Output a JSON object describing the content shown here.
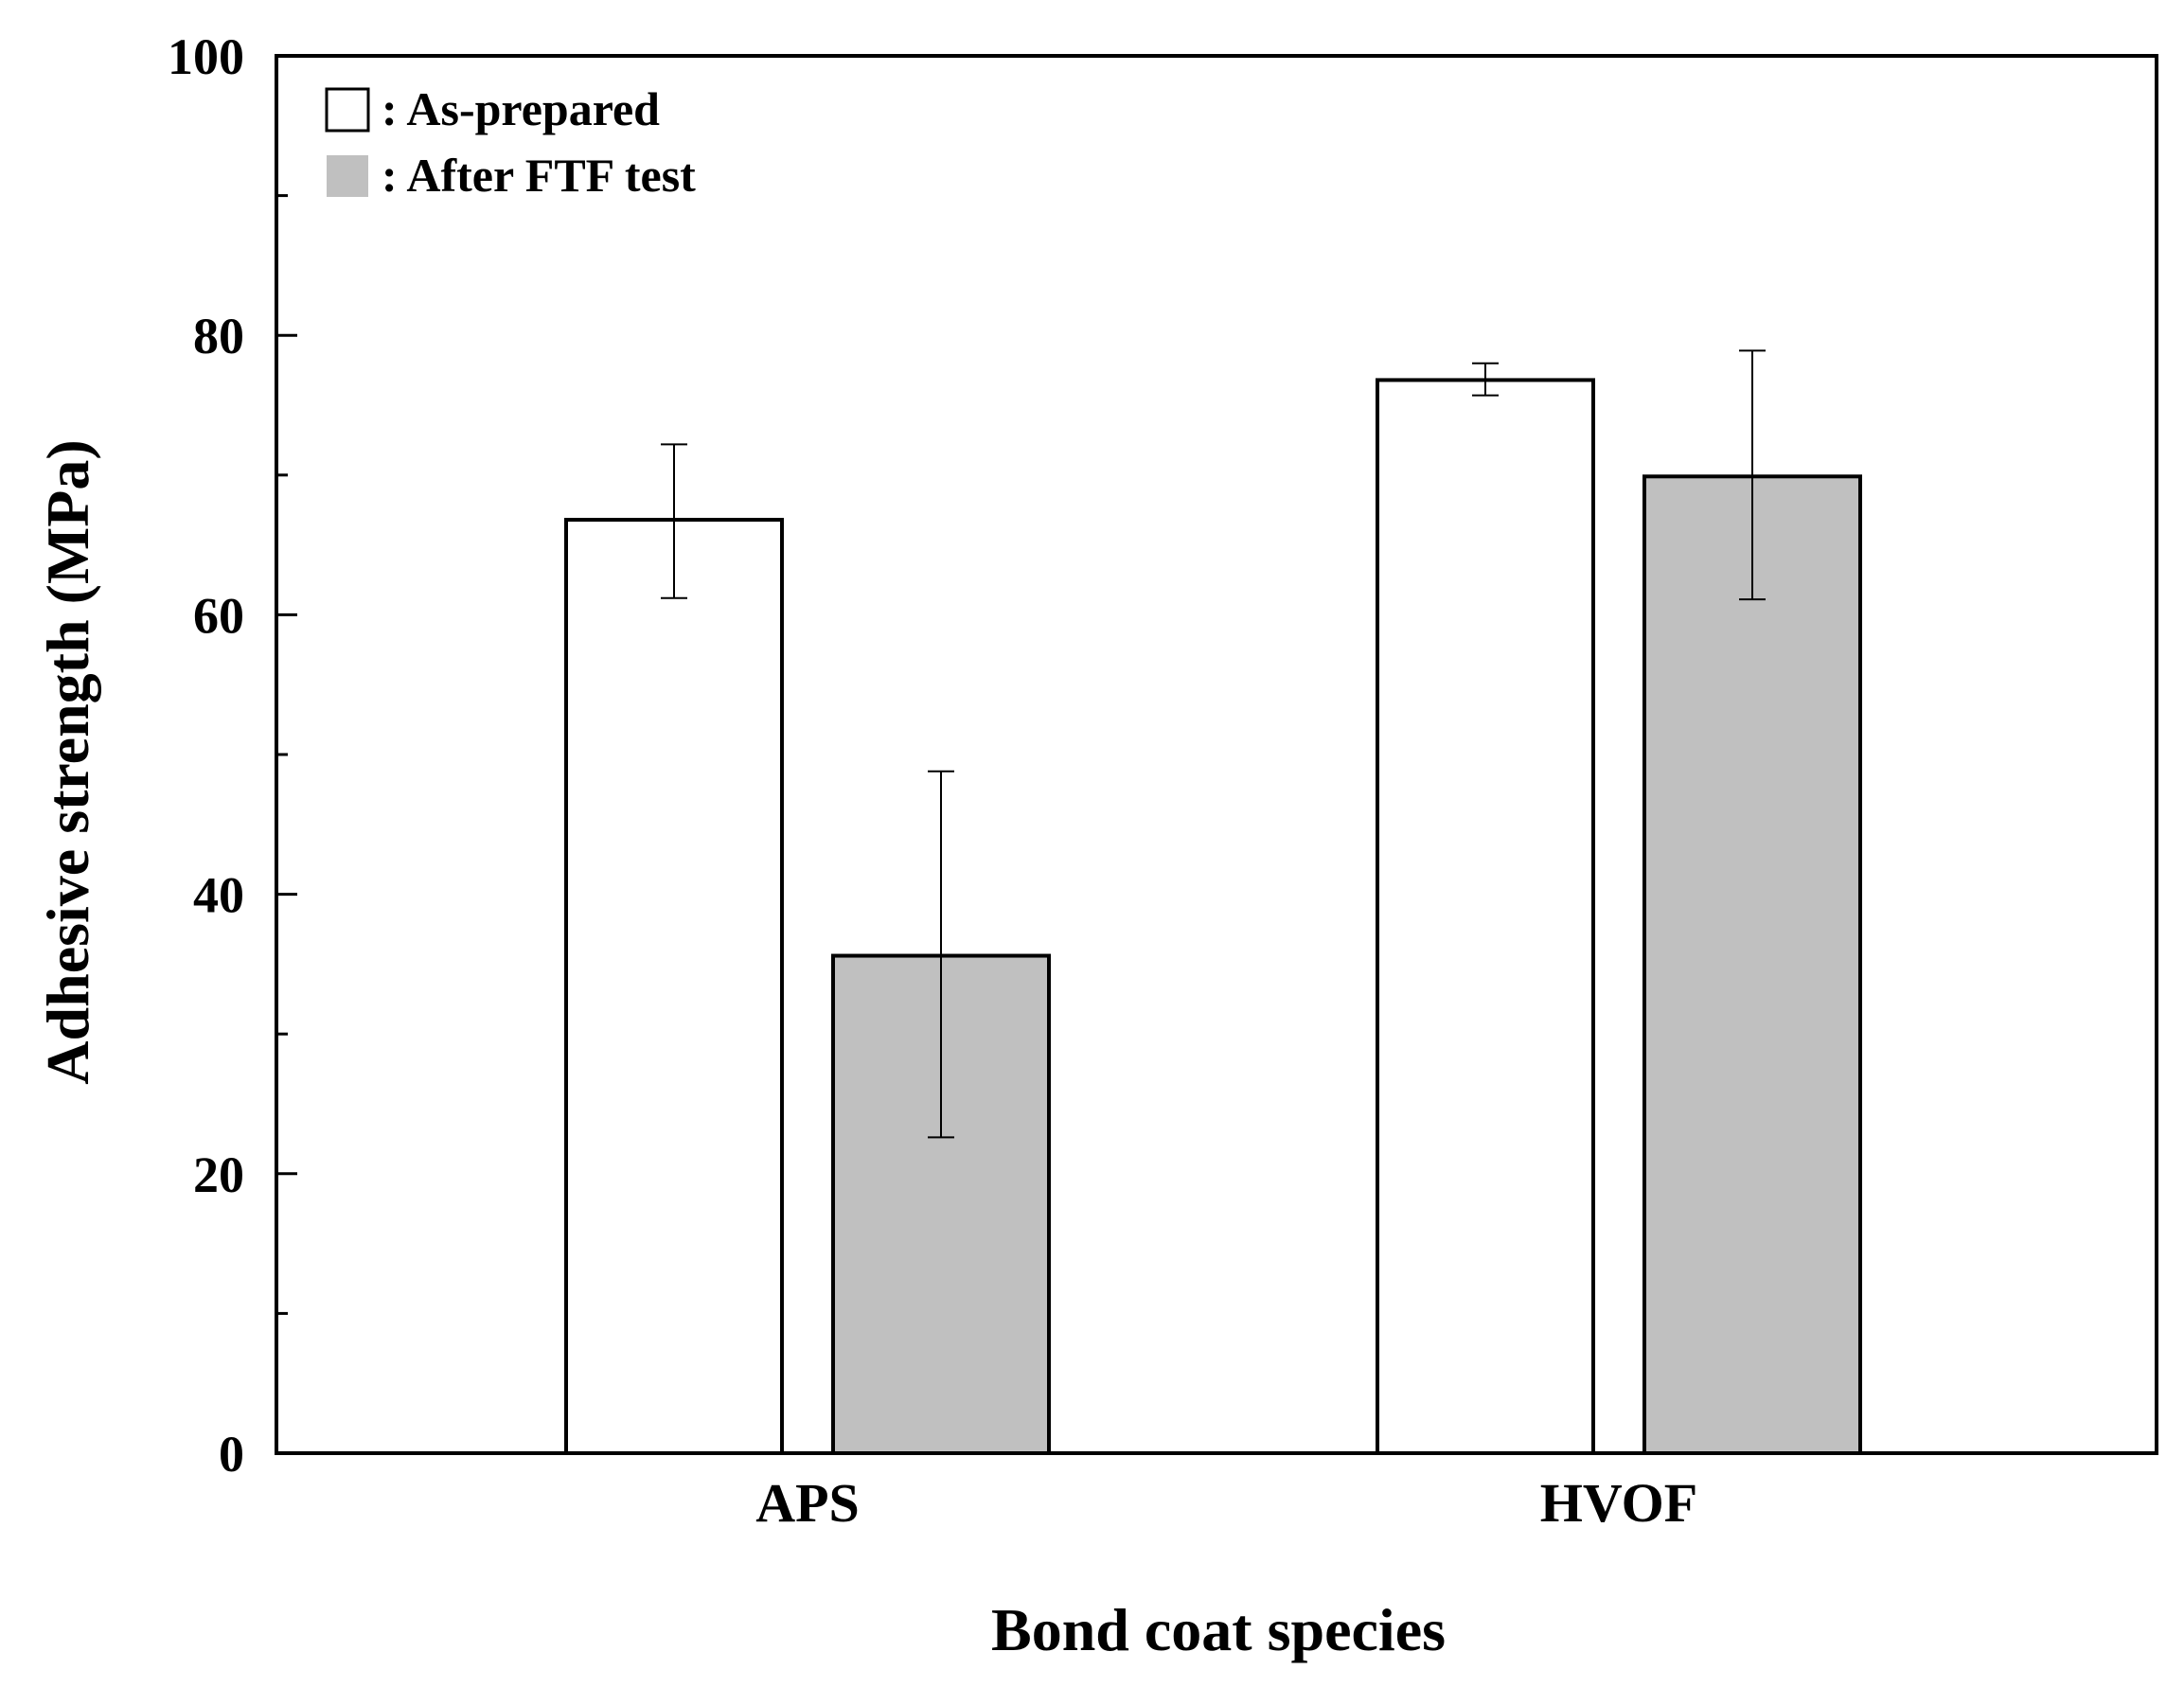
{
  "chart_data": {
    "type": "bar",
    "title": "",
    "xlabel": "Bond coat species",
    "ylabel": "Adhesive  strength (MPa)",
    "categories": [
      "APS",
      "HVOF"
    ],
    "ylim": [
      0,
      100
    ],
    "yticks": [
      0,
      20,
      40,
      60,
      80,
      100
    ],
    "yticks_minor": [
      10,
      30,
      50,
      70,
      90
    ],
    "grid": false,
    "legend_position": "top-left",
    "series": [
      {
        "name": ": As-prepared",
        "color": "#ffffff",
        "values": [
          66.8,
          76.8
        ],
        "errors": [
          [
            61.2,
            72.2
          ],
          [
            75.7,
            78.0
          ]
        ]
      },
      {
        "name": ": After FTF test",
        "color": "#c0c0c0",
        "values": [
          35.6,
          69.9
        ],
        "errors": [
          [
            22.6,
            48.8
          ],
          [
            61.1,
            78.9
          ]
        ]
      }
    ]
  }
}
